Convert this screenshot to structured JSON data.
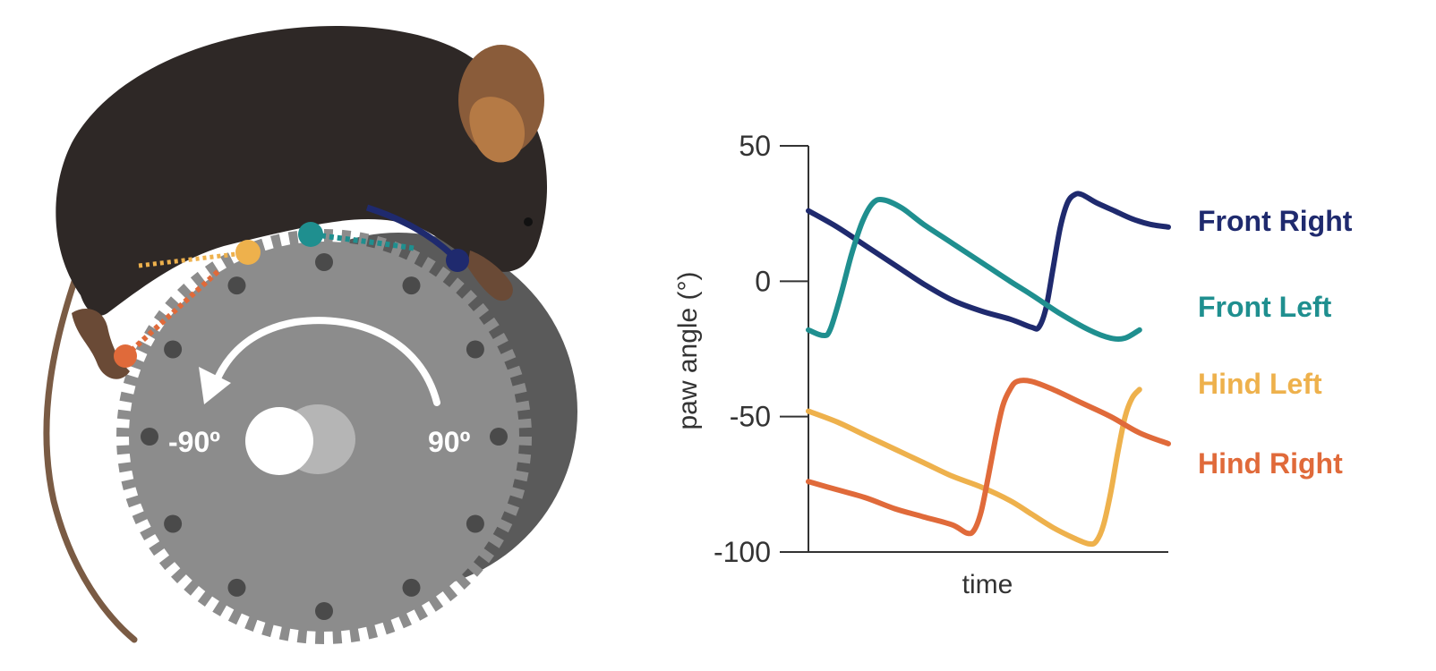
{
  "illustration": {
    "wheel_labels": {
      "left": "-90º",
      "right": "90º"
    },
    "colors": {
      "mouse_body": "#2e2826",
      "mouse_ear": "#8a5c3a",
      "mouse_ear_inner": "#b57a45",
      "tail": "#7a5b44",
      "wheel_face": "#8c8c8c",
      "wheel_side": "#5a5a5a",
      "arrow": "#ffffff"
    }
  },
  "chart_data": {
    "type": "line",
    "xlabel": "time",
    "ylabel": "paw angle (°)",
    "ylim": [
      -100,
      50
    ],
    "yticks": [
      50,
      0,
      -50,
      -100
    ],
    "xlim": [
      0,
      100
    ],
    "grid": false,
    "legend": "right",
    "series": [
      {
        "name": "Front Right",
        "color": "#1f2a6e",
        "points": [
          [
            0,
            26
          ],
          [
            8,
            20
          ],
          [
            16,
            13
          ],
          [
            24,
            6
          ],
          [
            32,
            -1
          ],
          [
            40,
            -7
          ],
          [
            48,
            -11
          ],
          [
            56,
            -14
          ],
          [
            62,
            -17
          ],
          [
            64,
            -17
          ],
          [
            66,
            -10
          ],
          [
            68,
            5
          ],
          [
            70,
            20
          ],
          [
            72,
            29
          ],
          [
            74,
            32
          ],
          [
            76,
            32
          ],
          [
            80,
            29
          ],
          [
            85,
            26
          ],
          [
            90,
            23
          ],
          [
            95,
            21
          ],
          [
            100,
            20
          ]
        ]
      },
      {
        "name": "Front Left",
        "color": "#1f8f8f",
        "points": [
          [
            0,
            -18
          ],
          [
            4,
            -20
          ],
          [
            6,
            -18
          ],
          [
            9,
            -5
          ],
          [
            12,
            10
          ],
          [
            15,
            22
          ],
          [
            18,
            29
          ],
          [
            21,
            30
          ],
          [
            26,
            27
          ],
          [
            32,
            21
          ],
          [
            40,
            14
          ],
          [
            48,
            7
          ],
          [
            56,
            0
          ],
          [
            62,
            -5
          ],
          [
            70,
            -12
          ],
          [
            78,
            -18
          ],
          [
            84,
            -21
          ],
          [
            88,
            -21
          ],
          [
            92,
            -18
          ]
        ]
      },
      {
        "name": "Hind Left",
        "color": "#eeb14c",
        "points": [
          [
            0,
            -48
          ],
          [
            8,
            -52
          ],
          [
            16,
            -57
          ],
          [
            24,
            -62
          ],
          [
            32,
            -67
          ],
          [
            40,
            -72
          ],
          [
            48,
            -76
          ],
          [
            56,
            -81
          ],
          [
            62,
            -86
          ],
          [
            68,
            -91
          ],
          [
            74,
            -95
          ],
          [
            78,
            -97
          ],
          [
            80,
            -96
          ],
          [
            82,
            -90
          ],
          [
            84,
            -78
          ],
          [
            86,
            -63
          ],
          [
            88,
            -50
          ],
          [
            90,
            -43
          ],
          [
            92,
            -40
          ]
        ]
      },
      {
        "name": "Hind Right",
        "color": "#e06a3a",
        "points": [
          [
            0,
            -74
          ],
          [
            8,
            -77
          ],
          [
            16,
            -80
          ],
          [
            24,
            -84
          ],
          [
            32,
            -87
          ],
          [
            40,
            -90
          ],
          [
            44,
            -93
          ],
          [
            46,
            -92
          ],
          [
            48,
            -85
          ],
          [
            50,
            -72
          ],
          [
            52,
            -58
          ],
          [
            54,
            -46
          ],
          [
            56,
            -40
          ],
          [
            58,
            -37
          ],
          [
            62,
            -37
          ],
          [
            68,
            -40
          ],
          [
            76,
            -45
          ],
          [
            84,
            -50
          ],
          [
            92,
            -56
          ],
          [
            100,
            -60
          ]
        ]
      }
    ]
  }
}
